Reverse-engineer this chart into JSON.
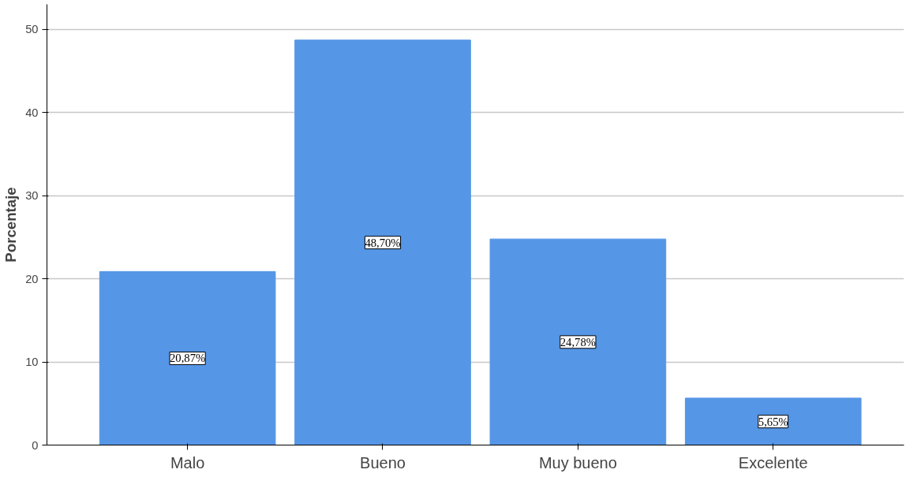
{
  "chart_data": {
    "type": "bar",
    "ylabel": "Porcentaje",
    "categories": [
      "Malo",
      "Bueno",
      "Muy bueno",
      "Excelente"
    ],
    "values": [
      20.87,
      48.7,
      24.78,
      5.65
    ],
    "value_labels": [
      "20,87%",
      "48,70%",
      "24,78%",
      "5,65%"
    ],
    "color": "#5596e6",
    "ylim": [
      0,
      53
    ],
    "yticks": [
      0,
      10,
      20,
      30,
      40,
      50
    ],
    "grid": "y"
  }
}
